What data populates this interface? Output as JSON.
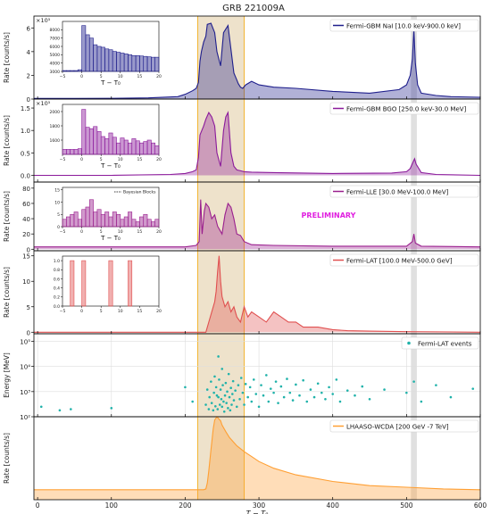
{
  "title": "GRB 221009A",
  "colors": {
    "nai": "#1f1f8c",
    "bgo": "#8b1a9b",
    "lle": "#9a1f8e",
    "lat": "#e05050",
    "events": "#20b2aa",
    "wcda": "#ff9f33",
    "band": "#d9bf8c",
    "band_edge": "#f2b430",
    "gray_band": "#999999"
  },
  "x_axis": {
    "label": "T − T₀",
    "range": [
      -5,
      600
    ],
    "ticks": [
      "0",
      "100",
      "200",
      "300",
      "400",
      "500",
      "600"
    ]
  },
  "highlight": {
    "main_band": [
      217,
      280
    ],
    "gray_band": [
      506,
      514
    ]
  },
  "chart_data": [
    {
      "type": "line",
      "name": "Fermi-GBM NaI",
      "legend": "Fermi-GBM NaI  [10.0 keV-900.0 keV]",
      "ylabel": "Rate [counts/s]",
      "multiplier": "×10⁵",
      "ylim": [
        0,
        7
      ],
      "yticks": [
        "0",
        "2",
        "4",
        "6"
      ],
      "x": [
        -5,
        50,
        100,
        150,
        190,
        200,
        210,
        215,
        218,
        220,
        222,
        225,
        228,
        230,
        235,
        240,
        243,
        248,
        252,
        256,
        258,
        262,
        266,
        270,
        272,
        275,
        278,
        282,
        290,
        300,
        320,
        350,
        400,
        450,
        490,
        500,
        505,
        508,
        510,
        512,
        515,
        520,
        540,
        560,
        600
      ],
      "y": [
        0.05,
        0.05,
        0.06,
        0.1,
        0.2,
        0.4,
        0.7,
        0.9,
        1.4,
        3.2,
        4.0,
        4.8,
        5.3,
        6.3,
        6.4,
        5.6,
        4.0,
        2.8,
        5.6,
        6.0,
        6.2,
        4.2,
        2.2,
        1.6,
        1.3,
        1.0,
        0.9,
        1.2,
        1.5,
        1.2,
        1.0,
        0.9,
        0.65,
        0.5,
        0.8,
        1.2,
        2.0,
        3.4,
        5.9,
        3.0,
        1.2,
        0.5,
        0.3,
        0.2,
        0.15
      ],
      "inset": {
        "type": "bar",
        "xlim": [
          -5,
          20
        ],
        "ylim": [
          3000,
          9000
        ],
        "xticks": [
          "−5",
          "0",
          "5",
          "10",
          "15",
          "20"
        ],
        "yticks": [
          "3000",
          "4000",
          "5000",
          "6000",
          "7000",
          "8000"
        ],
        "xlabel": "T − T₀",
        "x": [
          -5,
          -4,
          -3,
          -2,
          -1,
          0,
          1,
          2,
          3,
          4,
          5,
          6,
          7,
          8,
          9,
          10,
          11,
          12,
          13,
          14,
          15,
          16,
          17,
          18,
          19
        ],
        "y": [
          3100,
          3100,
          3100,
          3100,
          3200,
          8500,
          7400,
          7000,
          6200,
          6000,
          5900,
          5700,
          5600,
          5400,
          5300,
          5200,
          5100,
          5000,
          4900,
          4900,
          4850,
          4800,
          4750,
          4700,
          4700
        ]
      }
    },
    {
      "type": "line",
      "name": "Fermi-GBM BGO",
      "legend": "Fermi-GBM BGO  [250.0 keV-30.0 MeV]",
      "ylabel": "Rate [counts/s]",
      "multiplier": "×10⁵",
      "ylim": [
        -0.15,
        1.7
      ],
      "yticks": [
        "0.0",
        "0.5",
        "1.0",
        "1.5"
      ],
      "x": [
        -5,
        100,
        180,
        200,
        210,
        215,
        218,
        220,
        225,
        228,
        232,
        236,
        240,
        243,
        248,
        252,
        255,
        258,
        262,
        266,
        270,
        275,
        280,
        290,
        320,
        400,
        480,
        500,
        505,
        509,
        511,
        513,
        520,
        540,
        600
      ],
      "y": [
        0.0,
        0.0,
        0.02,
        0.04,
        0.08,
        0.12,
        0.4,
        0.9,
        1.1,
        1.25,
        1.4,
        1.3,
        1.1,
        0.5,
        0.2,
        1.0,
        1.3,
        1.4,
        0.5,
        0.2,
        0.12,
        0.1,
        0.08,
        0.07,
        0.06,
        0.04,
        0.05,
        0.08,
        0.15,
        0.3,
        0.37,
        0.25,
        0.06,
        0.02,
        0.0
      ],
      "inset": {
        "type": "bar",
        "xlim": [
          -5,
          20
        ],
        "ylim": [
          1400,
          2100
        ],
        "xticks": [
          "−5",
          "0",
          "5",
          "10",
          "15",
          "20"
        ],
        "yticks": [
          "1600",
          "1800",
          "2000"
        ],
        "xlabel": "T − T₀",
        "x": [
          -5,
          -4,
          -3,
          -2,
          -1,
          0,
          1,
          2,
          3,
          4,
          5,
          6,
          7,
          8,
          9,
          10,
          11,
          12,
          13,
          14,
          15,
          16,
          17,
          18,
          19
        ],
        "y": [
          1470,
          1470,
          1470,
          1470,
          1480,
          2030,
          1780,
          1760,
          1790,
          1720,
          1650,
          1620,
          1700,
          1640,
          1560,
          1630,
          1600,
          1560,
          1620,
          1590,
          1560,
          1580,
          1600,
          1560,
          1520
        ]
      }
    },
    {
      "type": "line",
      "name": "Fermi-LLE",
      "legend": "Fermi-LLE  [30.0 MeV-100.0 MeV]",
      "ylabel": "Rate [counts/s]",
      "annotation": "PRELIMINARY",
      "ylim": [
        -2,
        88
      ],
      "yticks": [
        "0",
        "20",
        "40",
        "60",
        "80"
      ],
      "x": [
        -5,
        50,
        100,
        150,
        200,
        215,
        219,
        221,
        223,
        226,
        228,
        232,
        236,
        240,
        244,
        250,
        254,
        258,
        262,
        266,
        270,
        275,
        280,
        290,
        320,
        400,
        500,
        508,
        510,
        512,
        520,
        600
      ],
      "y": [
        3,
        3,
        3,
        3,
        3,
        5,
        10,
        65,
        20,
        50,
        60,
        55,
        40,
        45,
        30,
        20,
        45,
        60,
        55,
        40,
        20,
        18,
        10,
        6,
        5,
        4,
        4,
        10,
        20,
        8,
        4,
        3
      ],
      "inset": {
        "type": "bar",
        "legend": "Bayesian Blocks",
        "xlim": [
          -5,
          20
        ],
        "ylim": [
          0,
          16
        ],
        "xticks": [
          "−5",
          "0",
          "5",
          "10",
          "15",
          "20"
        ],
        "yticks": [
          "0",
          "5",
          "10",
          "15"
        ],
        "xlabel": "T − T₀",
        "x": [
          -5,
          -4,
          -3,
          -2,
          -1,
          0,
          1,
          2,
          3,
          4,
          5,
          6,
          7,
          8,
          9,
          10,
          11,
          12,
          13,
          14,
          15,
          16,
          17,
          18,
          19
        ],
        "y": [
          3,
          4,
          5,
          6,
          3,
          7,
          8,
          11,
          6,
          7,
          5,
          6,
          4,
          6,
          5,
          3,
          4,
          6,
          3,
          2,
          4,
          5,
          3,
          2,
          3
        ]
      }
    },
    {
      "type": "line",
      "name": "Fermi-LAT",
      "legend": "Fermi-LAT  [100.0 MeV-500.0 GeV]",
      "ylabel": "Rate [counts/s]",
      "ylim": [
        -0.3,
        16
      ],
      "yticks": [
        "0",
        "5",
        "10",
        "15"
      ],
      "x": [
        -5,
        100,
        200,
        228,
        232,
        236,
        240,
        242,
        244,
        246,
        248,
        250,
        254,
        258,
        262,
        266,
        270,
        275,
        280,
        285,
        290,
        300,
        310,
        320,
        330,
        340,
        350,
        360,
        380,
        400,
        420,
        450,
        500,
        600
      ],
      "y": [
        0,
        0,
        0,
        0,
        2,
        4,
        6,
        8,
        12,
        15,
        10,
        7,
        5,
        6,
        4,
        5,
        3,
        2,
        5,
        3,
        4,
        3,
        2,
        4,
        3,
        2,
        2,
        1,
        1,
        0.5,
        0.3,
        0.2,
        0.1,
        0
      ],
      "inset": {
        "type": "bar",
        "xlim": [
          -5,
          20
        ],
        "ylim": [
          0,
          1.1
        ],
        "xticks": [
          "−5",
          "0",
          "5",
          "10",
          "15",
          "20"
        ],
        "yticks": [
          "0.0",
          "0.2",
          "0.4",
          "0.6",
          "0.8",
          "1.0"
        ],
        "x": [
          -5,
          -4,
          -3,
          -2,
          -1,
          0,
          1,
          2,
          3,
          4,
          5,
          6,
          7,
          8,
          9,
          10,
          11,
          12,
          13,
          14,
          15,
          16,
          17,
          18,
          19
        ],
        "y": [
          0,
          0,
          1,
          0,
          0,
          1,
          0,
          0,
          0,
          0,
          0,
          0,
          1,
          0,
          0,
          0,
          0,
          1,
          0,
          0,
          0,
          0,
          0,
          0,
          0
        ]
      }
    },
    {
      "type": "scatter",
      "name": "Fermi-LAT events",
      "legend": "Fermi-LAT events",
      "ylabel": "Energy [MeV]",
      "yscale": "log",
      "ylim": [
        100,
        200000
      ],
      "yticks": [
        "10²",
        "10³",
        "10⁴",
        "10⁵"
      ],
      "points": [
        [
          5,
          250
        ],
        [
          30,
          180
        ],
        [
          45,
          200
        ],
        [
          100,
          220
        ],
        [
          200,
          1500
        ],
        [
          210,
          400
        ],
        [
          228,
          300
        ],
        [
          230,
          1200
        ],
        [
          232,
          200
        ],
        [
          233,
          600
        ],
        [
          235,
          2500
        ],
        [
          236,
          350
        ],
        [
          238,
          180
        ],
        [
          239,
          900
        ],
        [
          240,
          4000
        ],
        [
          241,
          260
        ],
        [
          242,
          1500
        ],
        [
          243,
          700
        ],
        [
          244,
          200
        ],
        [
          245,
          25000
        ],
        [
          245,
          600
        ],
        [
          246,
          3000
        ],
        [
          247,
          300
        ],
        [
          248,
          1200
        ],
        [
          249,
          500
        ],
        [
          250,
          8000
        ],
        [
          250,
          250
        ],
        [
          251,
          1800
        ],
        [
          252,
          400
        ],
        [
          253,
          160
        ],
        [
          254,
          700
        ],
        [
          255,
          2200
        ],
        [
          256,
          350
        ],
        [
          257,
          1000
        ],
        [
          258,
          220
        ],
        [
          259,
          5000
        ],
        [
          260,
          600
        ],
        [
          261,
          180
        ],
        [
          262,
          1400
        ],
        [
          263,
          300
        ],
        [
          264,
          800
        ],
        [
          265,
          2600
        ],
        [
          266,
          450
        ],
        [
          268,
          1100
        ],
        [
          270,
          250
        ],
        [
          272,
          1800
        ],
        [
          274,
          500
        ],
        [
          276,
          3500
        ],
        [
          278,
          900
        ],
        [
          280,
          300
        ],
        [
          282,
          2000
        ],
        [
          285,
          600
        ],
        [
          288,
          1500
        ],
        [
          290,
          400
        ],
        [
          293,
          3000
        ],
        [
          296,
          800
        ],
        [
          300,
          250
        ],
        [
          303,
          1800
        ],
        [
          306,
          700
        ],
        [
          310,
          4500
        ],
        [
          313,
          400
        ],
        [
          316,
          1300
        ],
        [
          320,
          900
        ],
        [
          323,
          2500
        ],
        [
          326,
          350
        ],
        [
          330,
          1600
        ],
        [
          334,
          600
        ],
        [
          338,
          3200
        ],
        [
          342,
          900
        ],
        [
          346,
          450
        ],
        [
          350,
          1900
        ],
        [
          355,
          700
        ],
        [
          360,
          2800
        ],
        [
          365,
          400
        ],
        [
          370,
          1200
        ],
        [
          375,
          600
        ],
        [
          380,
          2100
        ],
        [
          385,
          900
        ],
        [
          390,
          500
        ],
        [
          395,
          1500
        ],
        [
          400,
          800
        ],
        [
          405,
          3000
        ],
        [
          410,
          400
        ],
        [
          420,
          1100
        ],
        [
          430,
          700
        ],
        [
          440,
          1600
        ],
        [
          450,
          500
        ],
        [
          470,
          1200
        ],
        [
          500,
          900
        ],
        [
          510,
          2500
        ],
        [
          520,
          400
        ],
        [
          540,
          1800
        ],
        [
          560,
          600
        ],
        [
          590,
          1300
        ]
      ]
    },
    {
      "type": "area",
      "name": "LHAASO-WCDA",
      "legend": "LHAASO-WCDA [200 GeV -7 TeV]",
      "ylabel": "Rate [counts/s]",
      "ylim": [
        0,
        1
      ],
      "x": [
        -5,
        50,
        100,
        150,
        200,
        220,
        225,
        228,
        230,
        232,
        235,
        238,
        240,
        243,
        245,
        248,
        250,
        255,
        260,
        270,
        280,
        290,
        300,
        320,
        350,
        400,
        450,
        500,
        550,
        600
      ],
      "y": [
        0.12,
        0.12,
        0.12,
        0.12,
        0.12,
        0.12,
        0.12,
        0.13,
        0.2,
        0.35,
        0.6,
        0.85,
        0.96,
        1.0,
        0.98,
        0.95,
        0.9,
        0.82,
        0.75,
        0.65,
        0.58,
        0.52,
        0.46,
        0.38,
        0.3,
        0.22,
        0.17,
        0.15,
        0.13,
        0.12
      ]
    }
  ]
}
